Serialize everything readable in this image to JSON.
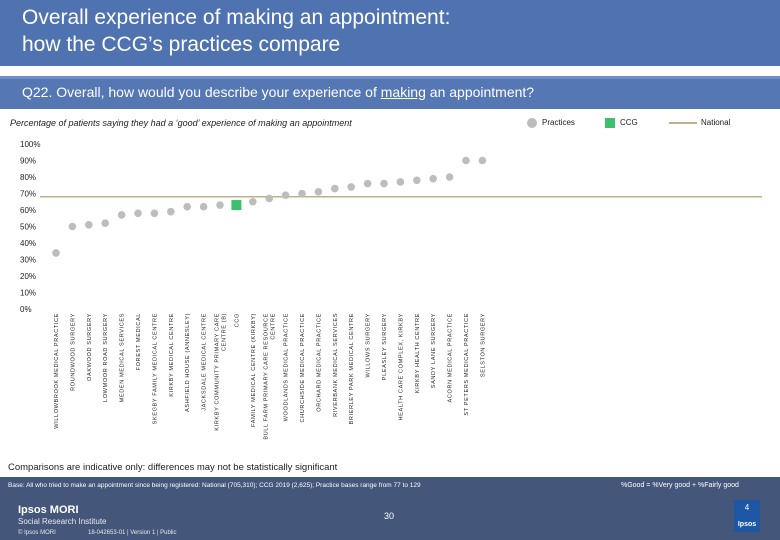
{
  "header": {
    "title_line1": "Overall experience of making an appointment:",
    "title_line2": "how the CCG’s practices compare"
  },
  "question": {
    "prefix": "Q22. Overall, how would you describe your experience of ",
    "underlined": "making",
    "suffix": " an appointment?"
  },
  "subtitle": "Percentage of patients saying they had a ‘good’ experience of making an appointment",
  "legend": {
    "practices": "Practices",
    "ccg": "CCG",
    "national": "National"
  },
  "colors": {
    "practice": "#bdbdbd",
    "ccg": "#3dbf6e",
    "national": "#bdb08a",
    "header": "#4f72b0",
    "footer": "#44567a"
  },
  "chart_data": {
    "type": "scatter",
    "title": "Percentage of patients saying they had a ‘good’ experience of making an appointment",
    "xlabel": "",
    "ylabel": "",
    "ylim": [
      0,
      100
    ],
    "yticks": [
      "0%",
      "10%",
      "20%",
      "30%",
      "40%",
      "50%",
      "60%",
      "70%",
      "80%",
      "90%",
      "100%"
    ],
    "national_value": 68,
    "ccg_category": "CCG",
    "categories": [
      [
        "WILLOWBROOK MEDICAL PRACTICE"
      ],
      [
        "ROUNDWOOD SURGERY"
      ],
      [
        "OAKWOOD SURGERY"
      ],
      [
        "LOWMOOR ROAD SURGERY"
      ],
      [
        "MEDEN MEDICAL SERVICES"
      ],
      [
        "FOREST MEDICAL"
      ],
      [
        "SKEGBY FAMILY MEDICAL CENTRE"
      ],
      [
        "KIRKBY MEDICAL CENTRE"
      ],
      [
        "ASHFIELD HOUSE (ANNESLEY)"
      ],
      [
        "JACKSDALE MEDICAL CENTRE"
      ],
      [
        "KIRKBY COMMUNITY PRIMARY CARE",
        "CENTRE (B)"
      ],
      [
        "CCG"
      ],
      [
        "FAMILY MEDICAL CENTRE (KIRKBY)"
      ],
      [
        "BULL FARM PRIMARY CARE RESOURCE",
        "CENTRE"
      ],
      [
        "WOODLANDS MEDICAL PRACTICE"
      ],
      [
        "CHURCHSIDE MEDICAL PRACTICE"
      ],
      [
        "ORCHARD MEDICAL PRACTICE"
      ],
      [
        "RIVERBANK MEDICAL SERVICES"
      ],
      [
        "BRIERLEY PARK MEDICAL CENTRE"
      ],
      [
        "WILLOWS SURGERY"
      ],
      [
        "PLEASLEY SURGERY"
      ],
      [
        "HEALTH CARE COMPLEX, KIRKBY"
      ],
      [
        "KIRKBY HEALTH CENTRE"
      ],
      [
        "SANDY LANE SURGERY"
      ],
      [
        "ACORN MEDICAL PRACTICE"
      ],
      [
        "ST PETERS MEDICAL PRACTICE"
      ],
      [
        "SELSTON SURGERY"
      ]
    ],
    "values": [
      34,
      50,
      51,
      52,
      57,
      58,
      58,
      59,
      62,
      62,
      63,
      63,
      65,
      67,
      69,
      70,
      71,
      73,
      74,
      76,
      76,
      77,
      78,
      79,
      80,
      90,
      90
    ]
  },
  "footer": {
    "comparison_note": "Comparisons are indicative only: differences may not be statistically significant",
    "base_note": "Base: All who tried to make an appointment since being registered: National (705,310); CCG 2019 (2,625); Practice bases range from 77 to 129",
    "good_note": "%Good = %Very good + %Fairly good",
    "page_number": "30",
    "brand_line1": "Ipsos MORI",
    "brand_line2": "Social Research Institute",
    "copyright": "© Ipsos MORI",
    "job_number": "18-042653-01 | Version 1 | Public",
    "logo_top": "4",
    "logo_text": "Ipsos"
  }
}
